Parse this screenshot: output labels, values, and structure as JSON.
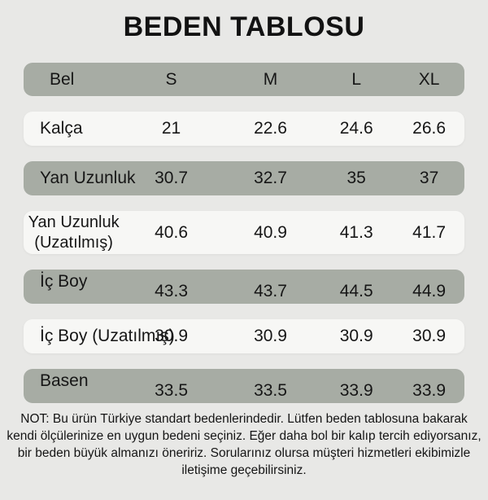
{
  "page": {
    "title": "BEDEN TABLOSU"
  },
  "table": {
    "header": {
      "label": "Bel",
      "sizes": [
        "S",
        "M",
        "L",
        "XL"
      ]
    },
    "rows": [
      {
        "label": "Kalça",
        "values": [
          "21",
          "22.6",
          "24.6",
          "26.6"
        ]
      },
      {
        "label": "Yan Uzunluk",
        "values": [
          "30.7",
          "32.7",
          "35",
          "37"
        ]
      },
      {
        "label": "Yan Uzunluk\n(Uzatılmış)",
        "values": [
          "40.6",
          "40.9",
          "41.3",
          "41.7"
        ]
      },
      {
        "label": "İç Boy",
        "values": [
          "43.3",
          "43.7",
          "44.5",
          "44.9"
        ]
      },
      {
        "label": "İç Boy (Uzatılmış)",
        "values": [
          "30.9",
          "30.9",
          "30.9",
          "30.9"
        ]
      },
      {
        "label": "Basen",
        "values": [
          "33.5",
          "33.5",
          "33.9",
          "33.9"
        ]
      }
    ]
  },
  "note": {
    "text": "NOT: Bu ürün Türkiye standart bedenlerindedir. Lütfen beden tablosuna bakarak kendi ölçülerinize en uygun bedeni seçiniz. Eğer daha bol bir kalıp tercih ediyorsanız, bir beden büyük almanızı öneririz. Sorularınız olursa müşteri hizmetleri ekibimizle iletişime geçebilirsiniz."
  },
  "colors": {
    "background": "#e8e8e6",
    "row_green": "#a7aca4",
    "row_light": "#f7f7f5",
    "text": "#161616"
  }
}
